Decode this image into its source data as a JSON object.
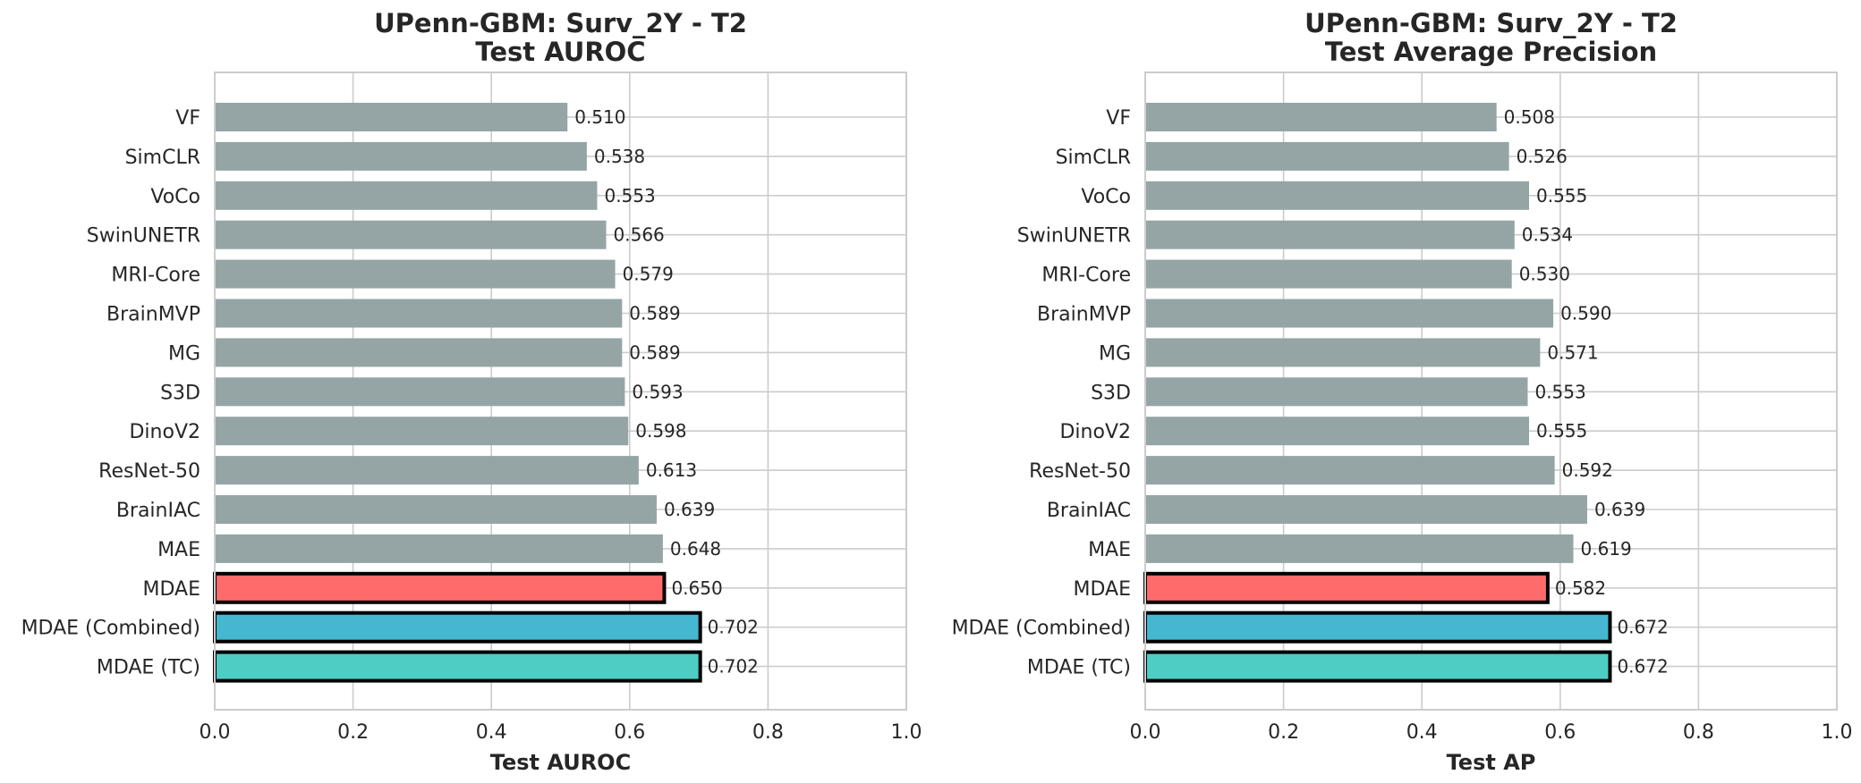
{
  "chart_data": [
    {
      "type": "bar",
      "orientation": "horizontal",
      "title": "UPenn-GBM: Surv_2Y - T2",
      "subtitle": "Test AUROC",
      "xlabel": "Test AUROC",
      "ylabel": "",
      "xlim": [
        0.0,
        1.0
      ],
      "xticks": [
        "0.0",
        "0.2",
        "0.4",
        "0.6",
        "0.8",
        "1.0"
      ],
      "grid": true,
      "categories": [
        "VF",
        "SimCLR",
        "VoCo",
        "SwinUNETR",
        "MRI-Core",
        "BrainMVP",
        "MG",
        "S3D",
        "DinoV2",
        "ResNet-50",
        "BrainIAC",
        "MAE",
        "MDAE",
        "MDAE (Combined)",
        "MDAE (TC)"
      ],
      "values": [
        0.51,
        0.538,
        0.553,
        0.566,
        0.579,
        0.589,
        0.589,
        0.593,
        0.598,
        0.613,
        0.639,
        0.648,
        0.65,
        0.702,
        0.702
      ],
      "value_labels": [
        "0.510",
        "0.538",
        "0.553",
        "0.566",
        "0.579",
        "0.589",
        "0.589",
        "0.593",
        "0.598",
        "0.613",
        "0.639",
        "0.648",
        "0.650",
        "0.702",
        "0.702"
      ],
      "colors": [
        "#95a5a6",
        "#95a5a6",
        "#95a5a6",
        "#95a5a6",
        "#95a5a6",
        "#95a5a6",
        "#95a5a6",
        "#95a5a6",
        "#95a5a6",
        "#95a5a6",
        "#95a5a6",
        "#95a5a6",
        "#ff6b6b",
        "#45b7d1",
        "#4ecdc4"
      ],
      "highlighted": [
        false,
        false,
        false,
        false,
        false,
        false,
        false,
        false,
        false,
        false,
        false,
        false,
        true,
        true,
        true
      ]
    },
    {
      "type": "bar",
      "orientation": "horizontal",
      "title": "UPenn-GBM: Surv_2Y - T2",
      "subtitle": "Test Average Precision",
      "xlabel": "Test AP",
      "ylabel": "",
      "xlim": [
        0.0,
        1.0
      ],
      "xticks": [
        "0.0",
        "0.2",
        "0.4",
        "0.6",
        "0.8",
        "1.0"
      ],
      "grid": true,
      "categories": [
        "VF",
        "SimCLR",
        "VoCo",
        "SwinUNETR",
        "MRI-Core",
        "BrainMVP",
        "MG",
        "S3D",
        "DinoV2",
        "ResNet-50",
        "BrainIAC",
        "MAE",
        "MDAE",
        "MDAE (Combined)",
        "MDAE (TC)"
      ],
      "values": [
        0.508,
        0.526,
        0.555,
        0.534,
        0.53,
        0.59,
        0.571,
        0.553,
        0.555,
        0.592,
        0.639,
        0.619,
        0.582,
        0.672,
        0.672
      ],
      "value_labels": [
        "0.508",
        "0.526",
        "0.555",
        "0.534",
        "0.530",
        "0.590",
        "0.571",
        "0.553",
        "0.555",
        "0.592",
        "0.639",
        "0.619",
        "0.582",
        "0.672",
        "0.672"
      ],
      "colors": [
        "#95a5a6",
        "#95a5a6",
        "#95a5a6",
        "#95a5a6",
        "#95a5a6",
        "#95a5a6",
        "#95a5a6",
        "#95a5a6",
        "#95a5a6",
        "#95a5a6",
        "#95a5a6",
        "#95a5a6",
        "#ff6b6b",
        "#45b7d1",
        "#4ecdc4"
      ],
      "highlighted": [
        false,
        false,
        false,
        false,
        false,
        false,
        false,
        false,
        false,
        false,
        false,
        false,
        true,
        true,
        true
      ]
    }
  ]
}
